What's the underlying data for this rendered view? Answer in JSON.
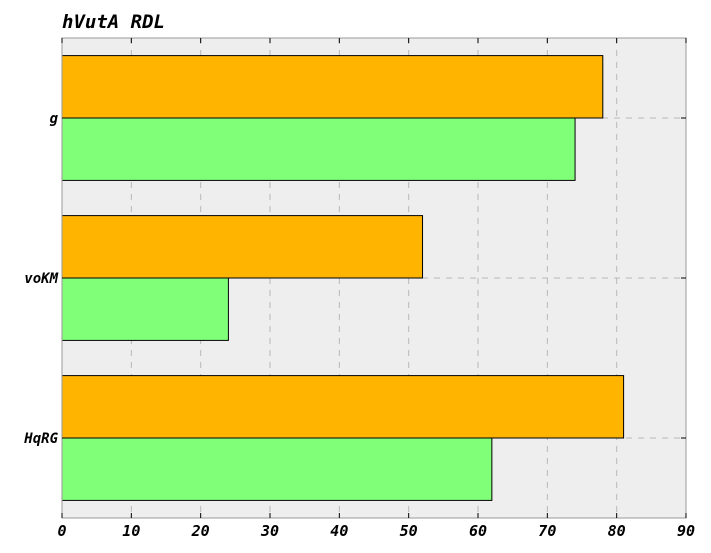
{
  "chart_data": {
    "type": "bar",
    "orientation": "horizontal",
    "title": "hVutA RDL",
    "xlabel": "",
    "ylabel": "",
    "categories": [
      "g",
      "voKM",
      "HqRG"
    ],
    "series": [
      {
        "values": [
          78,
          52,
          81
        ],
        "color": "#ffb400"
      },
      {
        "values": [
          74,
          24,
          62
        ],
        "color": "#80ff78"
      }
    ],
    "xlim": [
      0,
      90
    ],
    "xticks": [
      0,
      10,
      20,
      30,
      40,
      50,
      60,
      70,
      80,
      90
    ],
    "grid": true,
    "background": "#eeeeee"
  }
}
